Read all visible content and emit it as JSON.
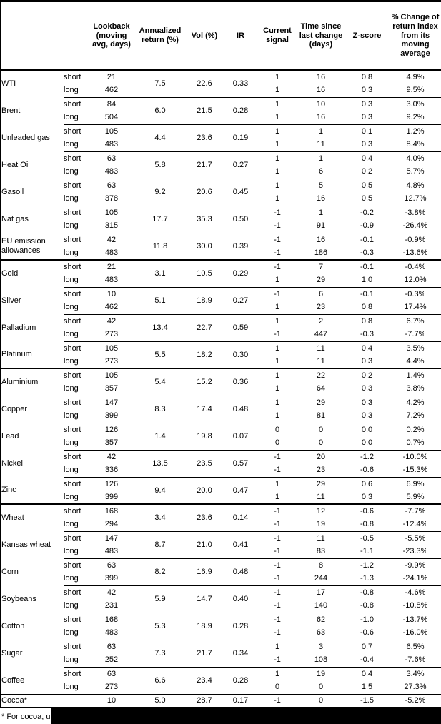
{
  "table": {
    "column_headers": {
      "lookback": "Lookback (moving avg, days)",
      "annualized_return": "Annualized return (%)",
      "vol": "Vol (%)",
      "ir": "IR",
      "current_signal": "Current signal",
      "time_since": "Time since last change (days)",
      "z_score": "Z-score",
      "pct_change": "% Change of return index from its moving average"
    },
    "sections": [
      {
        "commodities": [
          {
            "name": "WTI",
            "annualized_return": "7.5",
            "vol": "22.6",
            "ir": "0.33",
            "rows": [
              {
                "label": "short",
                "lookback": "21",
                "signal": "1",
                "time_since": "16",
                "z_score": "0.8",
                "pct_change": "4.9%"
              },
              {
                "label": "long",
                "lookback": "462",
                "signal": "1",
                "time_since": "16",
                "z_score": "0.3",
                "pct_change": "9.5%"
              }
            ]
          },
          {
            "name": "Brent",
            "annualized_return": "6.0",
            "vol": "21.5",
            "ir": "0.28",
            "rows": [
              {
                "label": "short",
                "lookback": "84",
                "signal": "1",
                "time_since": "10",
                "z_score": "0.3",
                "pct_change": "3.0%"
              },
              {
                "label": "long",
                "lookback": "504",
                "signal": "1",
                "time_since": "16",
                "z_score": "0.3",
                "pct_change": "9.2%"
              }
            ]
          },
          {
            "name": "Unleaded gas",
            "annualized_return": "4.4",
            "vol": "23.6",
            "ir": "0.19",
            "rows": [
              {
                "label": "short",
                "lookback": "105",
                "signal": "1",
                "time_since": "1",
                "z_score": "0.1",
                "pct_change": "1.2%"
              },
              {
                "label": "long",
                "lookback": "483",
                "signal": "1",
                "time_since": "11",
                "z_score": "0.3",
                "pct_change": "8.4%"
              }
            ]
          },
          {
            "name": "Heat Oil",
            "annualized_return": "5.8",
            "vol": "21.7",
            "ir": "0.27",
            "rows": [
              {
                "label": "short",
                "lookback": "63",
                "signal": "1",
                "time_since": "1",
                "z_score": "0.4",
                "pct_change": "4.0%"
              },
              {
                "label": "long",
                "lookback": "483",
                "signal": "1",
                "time_since": "6",
                "z_score": "0.2",
                "pct_change": "5.7%"
              }
            ]
          },
          {
            "name": "Gasoil",
            "annualized_return": "9.2",
            "vol": "20.6",
            "ir": "0.45",
            "rows": [
              {
                "label": "short",
                "lookback": "63",
                "signal": "1",
                "time_since": "5",
                "z_score": "0.5",
                "pct_change": "4.8%"
              },
              {
                "label": "long",
                "lookback": "378",
                "signal": "1",
                "time_since": "16",
                "z_score": "0.5",
                "pct_change": "12.7%"
              }
            ]
          },
          {
            "name": "Nat gas",
            "annualized_return": "17.7",
            "vol": "35.3",
            "ir": "0.50",
            "rows": [
              {
                "label": "short",
                "lookback": "105",
                "signal": "-1",
                "time_since": "1",
                "z_score": "-0.2",
                "pct_change": "-3.8%"
              },
              {
                "label": "long",
                "lookback": "315",
                "signal": "-1",
                "time_since": "91",
                "z_score": "-0.9",
                "pct_change": "-26.4%"
              }
            ]
          },
          {
            "name": "EU emission allowances",
            "annualized_return": "11.8",
            "vol": "30.0",
            "ir": "0.39",
            "rows": [
              {
                "label": "short",
                "lookback": "42",
                "signal": "-1",
                "time_since": "16",
                "z_score": "-0.1",
                "pct_change": "-0.9%"
              },
              {
                "label": "long",
                "lookback": "483",
                "signal": "-1",
                "time_since": "186",
                "z_score": "-0.3",
                "pct_change": "-13.6%"
              }
            ]
          }
        ]
      },
      {
        "commodities": [
          {
            "name": "Gold",
            "annualized_return": "3.1",
            "vol": "10.5",
            "ir": "0.29",
            "rows": [
              {
                "label": "short",
                "lookback": "21",
                "signal": "-1",
                "time_since": "7",
                "z_score": "-0.1",
                "pct_change": "-0.4%"
              },
              {
                "label": "long",
                "lookback": "483",
                "signal": "1",
                "time_since": "29",
                "z_score": "1.0",
                "pct_change": "12.0%"
              }
            ]
          },
          {
            "name": "Silver",
            "annualized_return": "5.1",
            "vol": "18.9",
            "ir": "0.27",
            "rows": [
              {
                "label": "short",
                "lookback": "10",
                "signal": "-1",
                "time_since": "6",
                "z_score": "-0.1",
                "pct_change": "-0.3%"
              },
              {
                "label": "long",
                "lookback": "462",
                "signal": "1",
                "time_since": "23",
                "z_score": "0.8",
                "pct_change": "17.4%"
              }
            ]
          },
          {
            "name": "Palladium",
            "annualized_return": "13.4",
            "vol": "22.7",
            "ir": "0.59",
            "rows": [
              {
                "label": "short",
                "lookback": "42",
                "signal": "1",
                "time_since": "2",
                "z_score": "0.8",
                "pct_change": "6.7%"
              },
              {
                "label": "long",
                "lookback": "273",
                "signal": "-1",
                "time_since": "447",
                "z_score": "-0.3",
                "pct_change": "-7.7%"
              }
            ]
          },
          {
            "name": "Platinum",
            "annualized_return": "5.5",
            "vol": "18.2",
            "ir": "0.30",
            "rows": [
              {
                "label": "short",
                "lookback": "105",
                "signal": "1",
                "time_since": "11",
                "z_score": "0.4",
                "pct_change": "3.5%"
              },
              {
                "label": "long",
                "lookback": "273",
                "signal": "1",
                "time_since": "11",
                "z_score": "0.3",
                "pct_change": "4.4%"
              }
            ]
          }
        ]
      },
      {
        "commodities": [
          {
            "name": "Aluminium",
            "annualized_return": "5.4",
            "vol": "15.2",
            "ir": "0.36",
            "rows": [
              {
                "label": "short",
                "lookback": "105",
                "signal": "1",
                "time_since": "22",
                "z_score": "0.2",
                "pct_change": "1.4%"
              },
              {
                "label": "long",
                "lookback": "357",
                "signal": "1",
                "time_since": "64",
                "z_score": "0.3",
                "pct_change": "3.8%"
              }
            ]
          },
          {
            "name": "Copper",
            "annualized_return": "8.3",
            "vol": "17.4",
            "ir": "0.48",
            "rows": [
              {
                "label": "short",
                "lookback": "147",
                "signal": "1",
                "time_since": "29",
                "z_score": "0.3",
                "pct_change": "4.2%"
              },
              {
                "label": "long",
                "lookback": "399",
                "signal": "1",
                "time_since": "81",
                "z_score": "0.3",
                "pct_change": "7.2%"
              }
            ]
          },
          {
            "name": "Lead",
            "annualized_return": "1.4",
            "vol": "19.8",
            "ir": "0.07",
            "rows": [
              {
                "label": "short",
                "lookback": "126",
                "signal": "0",
                "time_since": "0",
                "z_score": "0.0",
                "pct_change": "0.2%"
              },
              {
                "label": "long",
                "lookback": "357",
                "signal": "0",
                "time_since": "0",
                "z_score": "0.0",
                "pct_change": "0.7%"
              }
            ]
          },
          {
            "name": "Nickel",
            "annualized_return": "13.5",
            "vol": "23.5",
            "ir": "0.57",
            "rows": [
              {
                "label": "short",
                "lookback": "42",
                "signal": "-1",
                "time_since": "20",
                "z_score": "-1.2",
                "pct_change": "-10.0%"
              },
              {
                "label": "long",
                "lookback": "336",
                "signal": "-1",
                "time_since": "23",
                "z_score": "-0.6",
                "pct_change": "-15.3%"
              }
            ]
          },
          {
            "name": "Zinc",
            "annualized_return": "9.4",
            "vol": "20.0",
            "ir": "0.47",
            "rows": [
              {
                "label": "short",
                "lookback": "126",
                "signal": "1",
                "time_since": "29",
                "z_score": "0.6",
                "pct_change": "6.9%"
              },
              {
                "label": "long",
                "lookback": "399",
                "signal": "1",
                "time_since": "11",
                "z_score": "0.3",
                "pct_change": "5.9%"
              }
            ]
          }
        ]
      },
      {
        "commodities": [
          {
            "name": "Wheat",
            "annualized_return": "3.4",
            "vol": "23.6",
            "ir": "0.14",
            "rows": [
              {
                "label": "short",
                "lookback": "168",
                "signal": "-1",
                "time_since": "12",
                "z_score": "-0.6",
                "pct_change": "-7.7%"
              },
              {
                "label": "long",
                "lookback": "294",
                "signal": "-1",
                "time_since": "19",
                "z_score": "-0.8",
                "pct_change": "-12.4%"
              }
            ]
          },
          {
            "name": "Kansas wheat",
            "annualized_return": "8.7",
            "vol": "21.0",
            "ir": "0.41",
            "rows": [
              {
                "label": "short",
                "lookback": "147",
                "signal": "-1",
                "time_since": "11",
                "z_score": "-0.5",
                "pct_change": "-5.5%"
              },
              {
                "label": "long",
                "lookback": "483",
                "signal": "-1",
                "time_since": "83",
                "z_score": "-1.1",
                "pct_change": "-23.3%"
              }
            ]
          },
          {
            "name": "Corn",
            "annualized_return": "8.2",
            "vol": "16.9",
            "ir": "0.48",
            "rows": [
              {
                "label": "short",
                "lookback": "63",
                "signal": "-1",
                "time_since": "8",
                "z_score": "-1.2",
                "pct_change": "-9.9%"
              },
              {
                "label": "long",
                "lookback": "399",
                "signal": "-1",
                "time_since": "244",
                "z_score": "-1.3",
                "pct_change": "-24.1%"
              }
            ]
          },
          {
            "name": "Soybeans",
            "annualized_return": "5.9",
            "vol": "14.7",
            "ir": "0.40",
            "rows": [
              {
                "label": "short",
                "lookback": "42",
                "signal": "-1",
                "time_since": "17",
                "z_score": "-0.8",
                "pct_change": "-4.6%"
              },
              {
                "label": "long",
                "lookback": "231",
                "signal": "-1",
                "time_since": "140",
                "z_score": "-0.8",
                "pct_change": "-10.8%"
              }
            ]
          },
          {
            "name": "Cotton",
            "annualized_return": "5.3",
            "vol": "18.9",
            "ir": "0.28",
            "rows": [
              {
                "label": "short",
                "lookback": "168",
                "signal": "-1",
                "time_since": "62",
                "z_score": "-1.0",
                "pct_change": "-13.7%"
              },
              {
                "label": "long",
                "lookback": "483",
                "signal": "-1",
                "time_since": "63",
                "z_score": "-0.6",
                "pct_change": "-16.0%"
              }
            ]
          },
          {
            "name": "Sugar",
            "annualized_return": "7.3",
            "vol": "21.7",
            "ir": "0.34",
            "rows": [
              {
                "label": "short",
                "lookback": "63",
                "signal": "1",
                "time_since": "3",
                "z_score": "0.7",
                "pct_change": "6.5%"
              },
              {
                "label": "long",
                "lookback": "252",
                "signal": "-1",
                "time_since": "108",
                "z_score": "-0.4",
                "pct_change": "-7.6%"
              }
            ]
          },
          {
            "name": "Coffee",
            "annualized_return": "6.6",
            "vol": "23.4",
            "ir": "0.28",
            "rows": [
              {
                "label": "short",
                "lookback": "63",
                "signal": "1",
                "time_since": "19",
                "z_score": "0.4",
                "pct_change": "3.4%"
              },
              {
                "label": "long",
                "lookback": "273",
                "signal": "0",
                "time_since": "0",
                "z_score": "1.5",
                "pct_change": "27.3%"
              }
            ]
          },
          {
            "name": "Cocoa*",
            "annualized_return": "5.0",
            "vol": "28.7",
            "ir": "0.17",
            "rows": [
              {
                "label": "",
                "lookback": "10",
                "signal": "-1",
                "time_since": "0",
                "z_score": "-1.5",
                "pct_change": "-5.2%"
              }
            ]
          }
        ]
      }
    ]
  },
  "footnote": {
    "visible_text": "* For cocoa, uses c"
  }
}
